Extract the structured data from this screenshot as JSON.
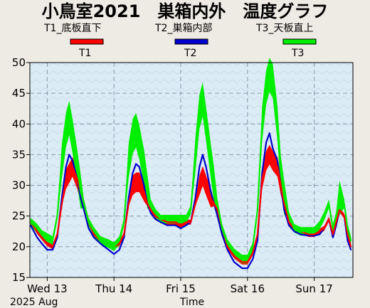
{
  "chart_data": {
    "type": "line",
    "title": "小鳥室2021　巣箱内外　温度グラフ",
    "xlabel": "Time",
    "date_label": "2025 Aug",
    "x_ticks": [
      "Wed 13",
      "Thu 14",
      "Fri 15",
      "Sat 16",
      "Sun 17"
    ],
    "ylim": [
      15,
      50
    ],
    "y_ticks": [
      15,
      20,
      25,
      30,
      35,
      40,
      45,
      50
    ],
    "grid": true,
    "legend": [
      {
        "header": "T1_底板直下",
        "name": "T1",
        "color": "#ff0000"
      },
      {
        "header": "T2_巣箱内部",
        "name": "T2",
        "color": "#0000cc"
      },
      {
        "header": "T3_天板直上",
        "name": "T3",
        "color": "#00ee00"
      }
    ],
    "x_unit": "days since Wed 13 00:00",
    "series": [
      {
        "name": "T1",
        "color": "#ff0000",
        "x": [
          -0.25,
          -0.15,
          -0.08,
          0,
          0.08,
          0.15,
          0.22,
          0.28,
          0.33,
          0.38,
          0.45,
          0.5,
          0.55,
          0.62,
          0.7,
          0.8,
          0.92,
          1.0,
          1.08,
          1.15,
          1.22,
          1.28,
          1.33,
          1.38,
          1.45,
          1.5,
          1.55,
          1.62,
          1.7,
          1.8,
          1.92,
          2.0,
          2.08,
          2.15,
          2.22,
          2.28,
          2.33,
          2.38,
          2.45,
          2.5,
          2.55,
          2.62,
          2.7,
          2.8,
          2.92,
          3.0,
          3.08,
          3.15,
          3.22,
          3.28,
          3.33,
          3.38,
          3.45,
          3.5,
          3.55,
          3.62,
          3.7,
          3.8,
          3.92,
          4.0,
          4.08,
          4.15,
          4.22,
          4.28,
          4.33,
          4.38,
          4.45,
          4.5,
          4.55
        ],
        "y": [
          24,
          22.5,
          21.5,
          20.5,
          20,
          22,
          27,
          31,
          32,
          33,
          31,
          29,
          27,
          24,
          22,
          21,
          20.5,
          20,
          20.5,
          22,
          27,
          30,
          30.5,
          30.5,
          29,
          27,
          26,
          25,
          24.5,
          24,
          24,
          23.5,
          24,
          24,
          27,
          30,
          31.5,
          30,
          28,
          27,
          26,
          23,
          20,
          18.5,
          17.5,
          17.5,
          19,
          22,
          31,
          34,
          35,
          34,
          33,
          30,
          27,
          24,
          23,
          22.5,
          22,
          22,
          22.5,
          23,
          24.5,
          22,
          24,
          26,
          25,
          22,
          20
        ]
      },
      {
        "name": "T2",
        "color": "#0000cc",
        "x": [
          -0.25,
          -0.15,
          -0.08,
          0,
          0.08,
          0.15,
          0.22,
          0.28,
          0.33,
          0.38,
          0.45,
          0.5,
          0.55,
          0.62,
          0.7,
          0.8,
          0.92,
          1.0,
          1.08,
          1.15,
          1.22,
          1.28,
          1.33,
          1.38,
          1.45,
          1.5,
          1.55,
          1.62,
          1.7,
          1.8,
          1.92,
          2.0,
          2.08,
          2.15,
          2.22,
          2.28,
          2.33,
          2.38,
          2.45,
          2.5,
          2.55,
          2.62,
          2.7,
          2.8,
          2.92,
          3.0,
          3.08,
          3.15,
          3.22,
          3.28,
          3.33,
          3.38,
          3.45,
          3.5,
          3.55,
          3.62,
          3.7,
          3.8,
          3.92,
          4.0,
          4.08,
          4.15,
          4.22,
          4.28,
          4.33,
          4.38,
          4.45,
          4.5,
          4.55
        ],
        "y": [
          23.5,
          21.5,
          20.5,
          19.5,
          19.5,
          21.5,
          28,
          33,
          35,
          34,
          31,
          28,
          26,
          23,
          21.5,
          20.5,
          19.5,
          18.8,
          19.5,
          21.5,
          28,
          32,
          33.5,
          33,
          30,
          27,
          25.5,
          24.5,
          24,
          23.5,
          23.5,
          23,
          23.5,
          24,
          28,
          33,
          35,
          33,
          29,
          27,
          25,
          22,
          19.5,
          17.5,
          16.5,
          16.5,
          18,
          21,
          32,
          37,
          38.5,
          36,
          34,
          30,
          26,
          23.5,
          22.5,
          22,
          21.8,
          21.8,
          22,
          23,
          24.5,
          21.5,
          23.5,
          26,
          25,
          21,
          19.5
        ]
      },
      {
        "name": "T3",
        "color": "#00ee00",
        "x": [
          -0.25,
          -0.15,
          -0.08,
          0,
          0.08,
          0.15,
          0.22,
          0.28,
          0.33,
          0.38,
          0.45,
          0.5,
          0.55,
          0.62,
          0.7,
          0.8,
          0.92,
          1.0,
          1.08,
          1.15,
          1.22,
          1.28,
          1.33,
          1.38,
          1.45,
          1.5,
          1.55,
          1.62,
          1.7,
          1.8,
          1.92,
          2.0,
          2.08,
          2.15,
          2.22,
          2.28,
          2.33,
          2.38,
          2.45,
          2.5,
          2.55,
          2.62,
          2.7,
          2.8,
          2.92,
          3.0,
          3.08,
          3.15,
          3.22,
          3.28,
          3.33,
          3.38,
          3.45,
          3.5,
          3.55,
          3.62,
          3.7,
          3.8,
          3.92,
          4.0,
          4.08,
          4.15,
          4.22,
          4.28,
          4.33,
          4.38,
          4.45,
          4.5,
          4.55
        ],
        "y": [
          24,
          23,
          22,
          21.5,
          21,
          25,
          34,
          39,
          41,
          38,
          33,
          29,
          27,
          24,
          22.5,
          21,
          20.5,
          20,
          21,
          24,
          34,
          38,
          39,
          37,
          33,
          29,
          27,
          25.5,
          24.5,
          24.5,
          24.5,
          24.5,
          24.5,
          26,
          35,
          42,
          44,
          40,
          34,
          30,
          27,
          23,
          20.5,
          19,
          18,
          18,
          20,
          26,
          40,
          46,
          48,
          47,
          40,
          32,
          28,
          25,
          23,
          22.5,
          22.5,
          22.5,
          23.5,
          25,
          27,
          23,
          25,
          28,
          27,
          23,
          21
        ]
      }
    ],
    "bands": [
      {
        "series": "T1",
        "width": 1.6
      },
      {
        "series": "T2",
        "width": 0
      },
      {
        "series": "T3",
        "width": 2.8
      }
    ]
  }
}
